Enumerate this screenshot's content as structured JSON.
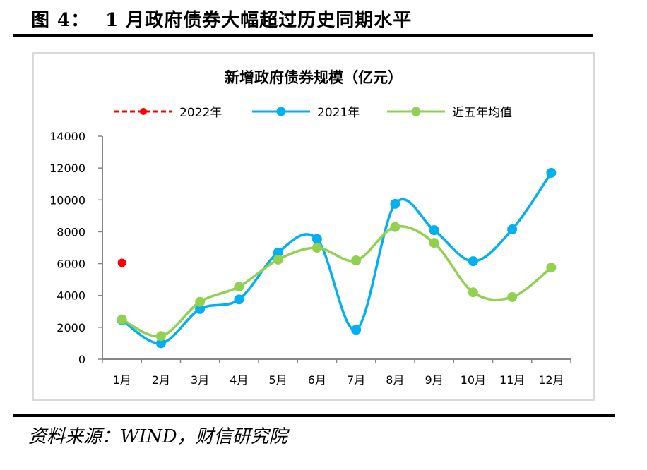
{
  "figure": {
    "label": "图 4：",
    "title": "1 月政府债券大幅超过历史同期水平"
  },
  "source": "资料来源：WIND，财信研究院",
  "chart_data": {
    "type": "line",
    "title": "新增政府债券规模（亿元）",
    "xlabel": "",
    "ylabel": "",
    "categories": [
      "1月",
      "2月",
      "3月",
      "4月",
      "5月",
      "6月",
      "7月",
      "8月",
      "9月",
      "10月",
      "11月",
      "12月"
    ],
    "ylim": [
      0,
      14000
    ],
    "yticks": [
      0,
      2000,
      4000,
      6000,
      8000,
      10000,
      12000,
      14000
    ],
    "grid": false,
    "legend_position": "top",
    "series": [
      {
        "name": "2022年",
        "color": "#ff0000",
        "style": "dashed",
        "smooth": false,
        "values": [
          6050,
          null,
          null,
          null,
          null,
          null,
          null,
          null,
          null,
          null,
          null,
          null
        ]
      },
      {
        "name": "2021年",
        "color": "#00b0f0",
        "style": "solid",
        "smooth": true,
        "values": [
          2450,
          1000,
          3150,
          3750,
          6700,
          7550,
          1850,
          9750,
          8100,
          6150,
          8150,
          11700
        ]
      },
      {
        "name": "近五年均值",
        "color": "#92d050",
        "style": "solid",
        "smooth": true,
        "values": [
          2500,
          1450,
          3600,
          4550,
          6250,
          7000,
          6200,
          8300,
          7300,
          4200,
          3900,
          5750
        ]
      }
    ]
  }
}
